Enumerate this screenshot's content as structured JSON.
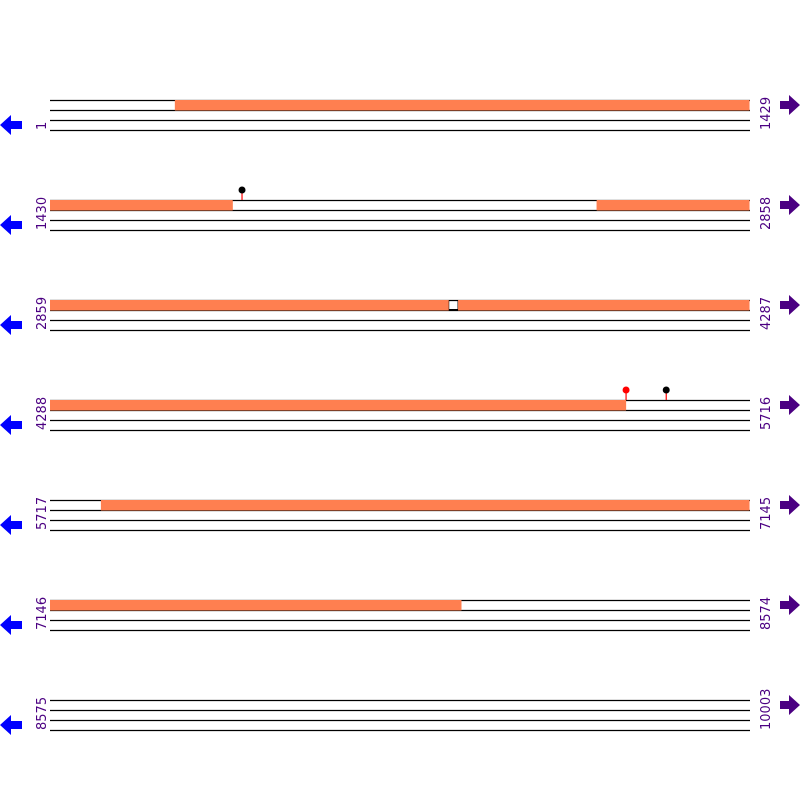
{
  "colors": {
    "feature": "#ff7f50",
    "line": "#000000",
    "label": "#4b0082",
    "left_arrow": "#0000ff",
    "right_arrow": "#4b0082",
    "marker_red": "#ff0000",
    "marker_black": "#000000",
    "marker_stem": "#ff0000"
  },
  "icons": {
    "left": "arrow-left-icon",
    "right": "arrow-right-icon"
  },
  "bases_per_row": 1429,
  "rows": [
    {
      "start": "1",
      "end": "1429",
      "features": [
        [
          256,
          1429
        ]
      ],
      "markers": []
    },
    {
      "start": "1430",
      "end": "2858",
      "features": [
        [
          1430,
          1803
        ],
        [
          2546,
          2858
        ]
      ],
      "markers": [
        {
          "pos": 1822,
          "color": "black"
        }
      ]
    },
    {
      "start": "2859",
      "end": "4287",
      "features": [
        [
          2859,
          3673
        ],
        [
          3692,
          4287
        ]
      ],
      "gap_boxes": [
        [
          3673,
          3692
        ]
      ],
      "markers": []
    },
    {
      "start": "4288",
      "end": "5716",
      "features": [
        [
          4288,
          5464
        ]
      ],
      "markers": [
        {
          "pos": 5464,
          "color": "red"
        },
        {
          "pos": 5546,
          "color": "black"
        }
      ]
    },
    {
      "start": "5717",
      "end": "7145",
      "features": [
        [
          5821,
          7145
        ]
      ],
      "markers": []
    },
    {
      "start": "7146",
      "end": "8574",
      "features": [
        [
          7146,
          7986
        ]
      ],
      "markers": []
    },
    {
      "start": "8575",
      "end": "10003",
      "features": [],
      "markers": []
    }
  ]
}
